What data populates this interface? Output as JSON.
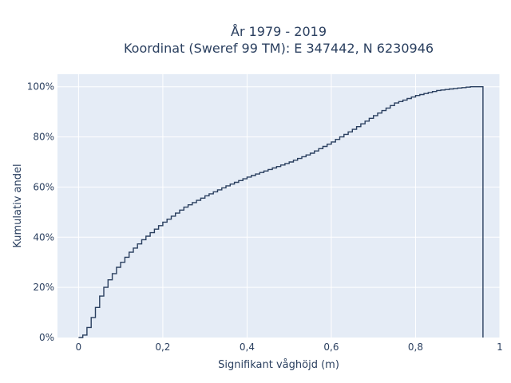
{
  "chart_data": {
    "type": "line",
    "line_shape": "step (empirical cumulative distribution)",
    "title_line1": "År 1979 - 2019",
    "title_line2": "Koordinat (Sweref 99 TM): E 347442, N 6230946",
    "xlabel": "Signifikant våghöjd (m)",
    "ylabel": "Kumulativ andel",
    "xlim": [
      -0.05,
      1.0
    ],
    "ylim": [
      0,
      1.05
    ],
    "x_ticks": [
      0,
      0.2,
      0.4,
      0.6,
      0.8,
      1.0
    ],
    "x_tick_labels": [
      "0",
      "0,2",
      "0,4",
      "0,6",
      "0,8",
      "1"
    ],
    "y_ticks": [
      0,
      0.2,
      0.4,
      0.6,
      0.8,
      1.0
    ],
    "y_tick_labels": [
      "0%",
      "20%",
      "40%",
      "60%",
      "80%",
      "100%"
    ],
    "grid": true,
    "colors": {
      "line": "#2a3f5f",
      "plot_bg": "#e5ecf6",
      "grid": "#ffffff"
    },
    "series": [
      {
        "x": [
          0.0,
          0.01,
          0.02,
          0.03,
          0.04,
          0.05,
          0.06,
          0.07,
          0.08,
          0.09,
          0.1,
          0.12,
          0.15,
          0.2,
          0.25,
          0.3,
          0.35,
          0.4,
          0.45,
          0.5,
          0.55,
          0.6,
          0.65,
          0.7,
          0.75,
          0.8,
          0.85,
          0.9,
          0.93,
          0.96,
          0.96
        ],
        "y": [
          0.0,
          0.01,
          0.04,
          0.08,
          0.12,
          0.165,
          0.2,
          0.23,
          0.255,
          0.28,
          0.3,
          0.34,
          0.39,
          0.46,
          0.52,
          0.565,
          0.605,
          0.64,
          0.67,
          0.7,
          0.735,
          0.78,
          0.83,
          0.885,
          0.935,
          0.965,
          0.985,
          0.995,
          1.0,
          1.0,
          0.0
        ]
      }
    ]
  }
}
